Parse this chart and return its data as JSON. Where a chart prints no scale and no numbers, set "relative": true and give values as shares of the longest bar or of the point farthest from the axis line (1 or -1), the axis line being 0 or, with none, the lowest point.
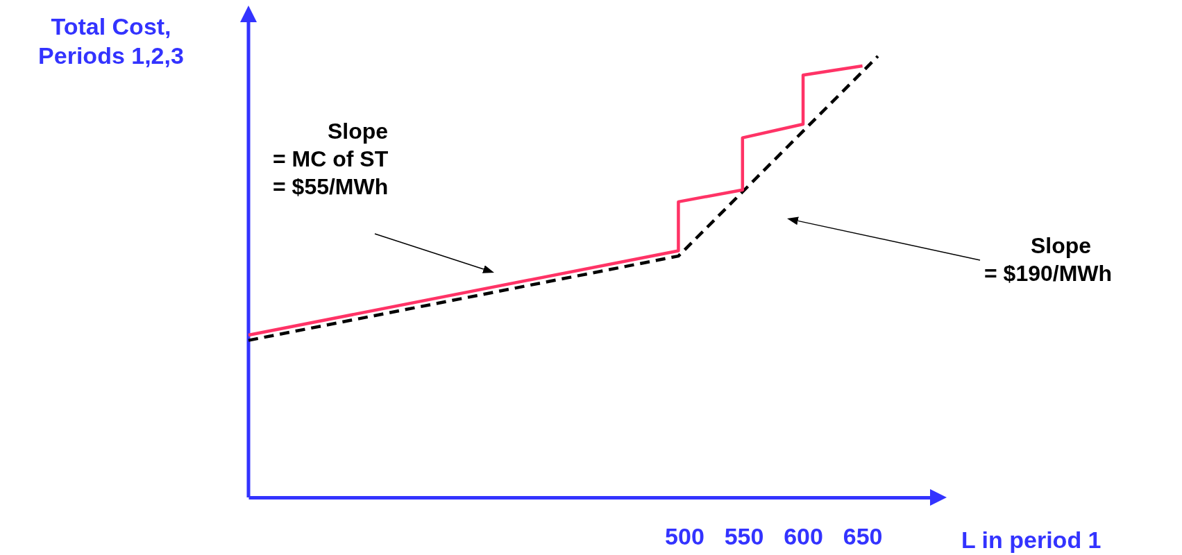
{
  "chart_data": {
    "type": "line",
    "ylabel": "Total Cost,\nPeriods 1,2,3",
    "xlabel": "L in period 1",
    "relative": true,
    "tick_labels": "x",
    "xlim": [
      133,
      711
    ],
    "xticks": [
      500,
      550,
      600,
      650
    ],
    "series": [
      {
        "color": "#000000",
        "line_style": "dashed",
        "x": [
          133,
          495,
          663
        ],
        "values": [
          0.356,
          0.547,
          1.0
        ]
      },
      {
        "color": "#ff3366",
        "line_style": "solid",
        "x": [
          133,
          495,
          495,
          549,
          549,
          600,
          600,
          650
        ],
        "values": [
          0.368,
          0.559,
          0.67,
          0.697,
          0.815,
          0.846,
          0.957,
          0.978
        ]
      }
    ],
    "annotations": [
      "Slope\n= MC of ST\n= $55/MWh",
      "Slope\n= $190/MWh"
    ]
  }
}
